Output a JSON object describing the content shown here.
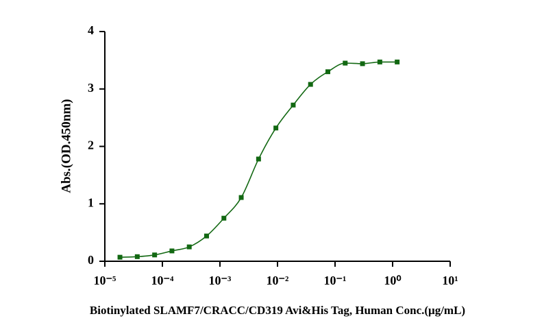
{
  "chart_data": {
    "type": "scatter",
    "x_label": "Biotinylated SLAMF7/CRACC/CD319 Avi&His Tag, Human Conc.(μg/mL)",
    "y_label": "Abs.(OD.450nm)",
    "x_scale": "log",
    "xlim": [
      1e-05,
      10
    ],
    "xticks": [
      {
        "value": 1e-05,
        "label": "10⁻⁵"
      },
      {
        "value": 0.0001,
        "label": "10⁻⁴"
      },
      {
        "value": 0.001,
        "label": "10⁻³"
      },
      {
        "value": 0.01,
        "label": "10⁻²"
      },
      {
        "value": 0.1,
        "label": "10⁻¹"
      },
      {
        "value": 1,
        "label": "10⁰"
      },
      {
        "value": 10,
        "label": "10¹"
      }
    ],
    "ylim": [
      0,
      4
    ],
    "yticks": [
      0,
      1,
      2,
      3,
      4
    ],
    "fit_curve": true,
    "series": [
      {
        "color": "#126812",
        "x": [
          1.8311e-05,
          3.6621e-05,
          7.3242e-05,
          0.000146484,
          0.000292969,
          0.000585938,
          0.001171875,
          0.00234375,
          0.0046875,
          0.009375,
          0.01875,
          0.0375,
          0.075,
          0.15,
          0.3,
          0.6,
          1.2
        ],
        "values": [
          0.07,
          0.08,
          0.11,
          0.18,
          0.25,
          0.44,
          0.75,
          1.11,
          1.78,
          2.32,
          2.72,
          3.08,
          3.3,
          3.45,
          3.44,
          3.47,
          3.47
        ]
      }
    ]
  }
}
